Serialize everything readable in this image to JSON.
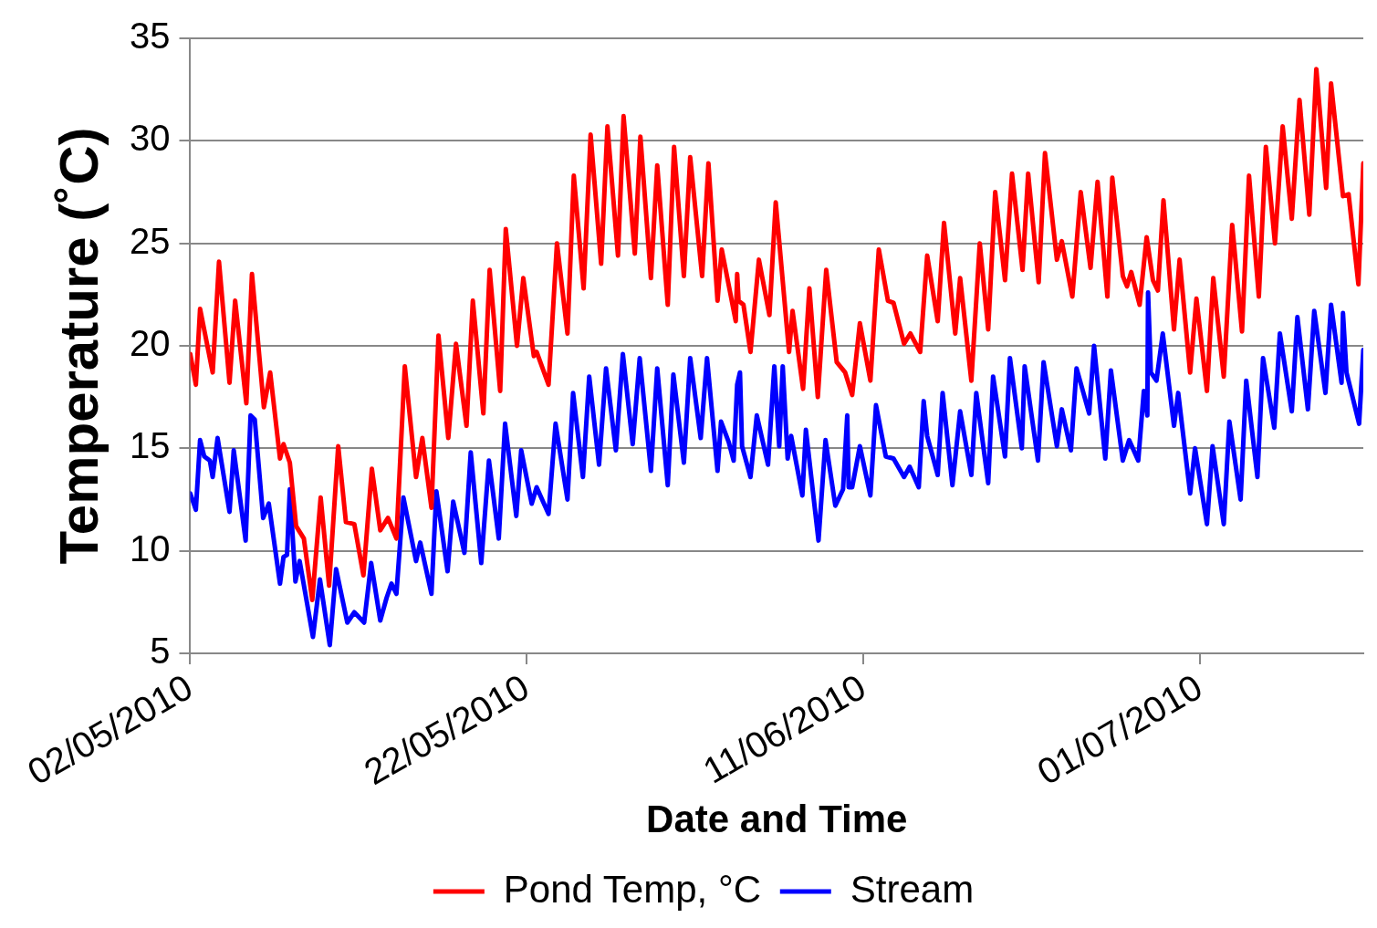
{
  "chart_data": {
    "type": "line",
    "xlabel": "Date and Time",
    "ylabel": "Temperature (˚C)",
    "xlim": [
      "2010-05-02T00:00",
      "2010-07-10T17:00"
    ],
    "xticks": [
      {
        "value": "2010-05-02",
        "label": "02/05/2010"
      },
      {
        "value": "2010-05-22",
        "label": "22/05/2010"
      },
      {
        "value": "2010-06-11",
        "label": "11/06/2010"
      },
      {
        "value": "2010-07-01",
        "label": "01/07/2010"
      }
    ],
    "ylim": [
      5,
      35
    ],
    "yticks": [
      5,
      10,
      15,
      20,
      25,
      30,
      35
    ],
    "grid": "y",
    "legend": "bottom",
    "marker": "none",
    "line_style": "solid",
    "series": [
      {
        "name": "Pond Temp, °C",
        "color": "#ff0000",
        "x": [
          "2010-05-02T00:00",
          "2010-05-02T08:00",
          "2010-05-02T14:00",
          "2010-05-03T08:00",
          "2010-05-03T17:00",
          "2010-05-04T08:00",
          "2010-05-04T16:00",
          "2010-05-05T08:00",
          "2010-05-05T16:00",
          "2010-05-06T09:00",
          "2010-05-06T18:00",
          "2010-05-07T08:00",
          "2010-05-07T13:00",
          "2010-05-07T22:00",
          "2010-05-08T07:00",
          "2010-05-08T18:00",
          "2010-05-09T06:00",
          "2010-05-09T18:00",
          "2010-05-10T06:00",
          "2010-05-10T19:00",
          "2010-05-11T06:00",
          "2010-05-11T18:00",
          "2010-05-12T07:00",
          "2010-05-12T19:00",
          "2010-05-13T07:00",
          "2010-05-13T18:00",
          "2010-05-14T06:00",
          "2010-05-14T18:00",
          "2010-05-15T10:00",
          "2010-05-15T19:00",
          "2010-05-16T08:00",
          "2010-05-16T18:00",
          "2010-05-17T08:00",
          "2010-05-17T19:00",
          "2010-05-18T10:00",
          "2010-05-18T19:00",
          "2010-05-19T10:00",
          "2010-05-19T19:00",
          "2010-05-20T10:00",
          "2010-05-20T18:00",
          "2010-05-21T10:00",
          "2010-05-21T19:00",
          "2010-05-22T10:00",
          "2010-05-22T14:00",
          "2010-05-23T07:00",
          "2010-05-23T19:00",
          "2010-05-24T10:00",
          "2010-05-24T19:00",
          "2010-05-25T09:00",
          "2010-05-25T19:00",
          "2010-05-26T10:00",
          "2010-05-26T19:00",
          "2010-05-27T10:00",
          "2010-05-27T18:00",
          "2010-05-28T10:00",
          "2010-05-28T18:00",
          "2010-05-29T09:00",
          "2010-05-29T18:00",
          "2010-05-30T09:00",
          "2010-05-30T18:00",
          "2010-05-31T08:00",
          "2010-05-31T17:00",
          "2010-06-01T10:00",
          "2010-06-01T19:00",
          "2010-06-02T08:00",
          "2010-06-02T14:00",
          "2010-06-03T10:00",
          "2010-06-03T12:00",
          "2010-06-03T14:00",
          "2010-06-03T21:00",
          "2010-06-04T07:00",
          "2010-06-04T19:00",
          "2010-06-05T10:00",
          "2010-06-05T19:00",
          "2010-06-06T14:00",
          "2010-06-06T19:00",
          "2010-06-07T10:00",
          "2010-06-07T19:00",
          "2010-06-08T07:00",
          "2010-06-08T19:00",
          "2010-06-09T10:00",
          "2010-06-09T22:00",
          "2010-06-10T08:00",
          "2010-06-10T19:00",
          "2010-06-11T10:00",
          "2010-06-11T22:00",
          "2010-06-12T11:00",
          "2010-06-12T19:00",
          "2010-06-13T10:00",
          "2010-06-13T19:00",
          "2010-06-14T09:00",
          "2010-06-14T19:00",
          "2010-06-15T10:00",
          "2010-06-15T19:00",
          "2010-06-16T11:00",
          "2010-06-16T18:00",
          "2010-06-17T10:00",
          "2010-06-17T22:00",
          "2010-06-18T10:00",
          "2010-06-18T20:00",
          "2010-06-19T10:00",
          "2010-06-19T20:00",
          "2010-06-20T11:00",
          "2010-06-20T19:00",
          "2010-06-21T10:00",
          "2010-06-21T19:00",
          "2010-06-22T12:00",
          "2010-06-22T19:00",
          "2010-06-23T10:00",
          "2010-06-23T22:00",
          "2010-06-24T12:00",
          "2010-06-24T22:00",
          "2010-06-25T12:00",
          "2010-06-25T19:00",
          "2010-06-26T10:00",
          "2010-06-26T16:00",
          "2010-06-26T22:00",
          "2010-06-27T10:00",
          "2010-06-27T20:00",
          "2010-06-28T05:00",
          "2010-06-28T12:00",
          "2010-06-28T20:00",
          "2010-06-29T11:00",
          "2010-06-29T19:00",
          "2010-06-30T10:00",
          "2010-06-30T19:00",
          "2010-07-01T10:00",
          "2010-07-01T19:00",
          "2010-07-02T10:00",
          "2010-07-02T22:00",
          "2010-07-03T12:00",
          "2010-07-03T22:00",
          "2010-07-04T12:00",
          "2010-07-04T22:00",
          "2010-07-05T11:00",
          "2010-07-05T22:00",
          "2010-07-06T11:00",
          "2010-07-06T22:00",
          "2010-07-07T12:00",
          "2010-07-07T22:00",
          "2010-07-08T12:00",
          "2010-07-08T19:00",
          "2010-07-09T12:00",
          "2010-07-09T20:00",
          "2010-07-10T10:00",
          "2010-07-10T17:00"
        ],
        "values": [
          19.6,
          18.1,
          21.8,
          18.7,
          24.1,
          18.2,
          22.2,
          17.2,
          23.5,
          17.0,
          18.7,
          14.5,
          15.2,
          14.3,
          11.2,
          10.6,
          7.6,
          12.6,
          8.3,
          15.1,
          11.4,
          11.3,
          8.8,
          14.0,
          11.0,
          11.6,
          10.6,
          19.0,
          13.6,
          15.5,
          12.1,
          20.5,
          15.5,
          20.1,
          16.1,
          22.2,
          16.7,
          23.7,
          17.8,
          25.7,
          20.0,
          23.3,
          19.5,
          19.7,
          18.1,
          25.0,
          20.6,
          28.3,
          22.8,
          30.3,
          24.0,
          30.7,
          24.4,
          31.2,
          24.5,
          30.2,
          23.3,
          28.8,
          22.0,
          29.7,
          23.4,
          29.2,
          23.4,
          28.9,
          22.2,
          24.7,
          21.2,
          23.5,
          22.2,
          22.0,
          19.7,
          24.2,
          21.5,
          27.0,
          19.7,
          21.7,
          17.9,
          22.8,
          17.5,
          23.7,
          19.2,
          18.7,
          17.6,
          21.1,
          18.3,
          24.7,
          22.2,
          22.1,
          20.1,
          20.6,
          19.7,
          24.4,
          21.2,
          26.0,
          20.6,
          23.3,
          18.3,
          25.0,
          20.8,
          27.5,
          23.2,
          28.4,
          23.7,
          28.4,
          23.1,
          29.4,
          24.2,
          25.1,
          22.4,
          27.5,
          23.8,
          28.0,
          22.4,
          28.2,
          23.4,
          22.9,
          23.6,
          22.0,
          25.3,
          23.2,
          22.7,
          27.1,
          20.8,
          24.2,
          18.7,
          22.3,
          17.8,
          23.3,
          18.5,
          25.9,
          20.7,
          28.3,
          22.4,
          29.7,
          25.0,
          30.7,
          26.2,
          32.0,
          26.4,
          33.5,
          27.7,
          32.8,
          27.3,
          27.4,
          23.0,
          28.9
        ]
      },
      {
        "name": "Stream",
        "color": "#0000ff",
        "x": [
          "2010-05-02T00:00",
          "2010-05-02T08:00",
          "2010-05-02T14:00",
          "2010-05-02T20:00",
          "2010-05-03T04:00",
          "2010-05-03T08:00",
          "2010-05-03T15:00",
          "2010-05-04T08:00",
          "2010-05-04T14:00",
          "2010-05-05T07:00",
          "2010-05-05T14:00",
          "2010-05-05T20:00",
          "2010-05-06T08:00",
          "2010-05-06T16:00",
          "2010-05-07T08:00",
          "2010-05-07T13:00",
          "2010-05-07T18:00",
          "2010-05-07T22:00",
          "2010-05-08T06:00",
          "2010-05-08T12:00",
          "2010-05-09T07:00",
          "2010-05-09T17:00",
          "2010-05-10T07:00",
          "2010-05-10T16:00",
          "2010-05-11T08:00",
          "2010-05-11T18:00",
          "2010-05-12T08:00",
          "2010-05-12T18:00",
          "2010-05-13T07:00",
          "2010-05-13T16:00",
          "2010-05-13T23:00",
          "2010-05-14T06:00",
          "2010-05-14T16:00",
          "2010-05-15T10:00",
          "2010-05-15T16:00",
          "2010-05-16T08:00",
          "2010-05-16T15:00",
          "2010-05-17T07:00",
          "2010-05-17T15:00",
          "2010-05-18T07:00",
          "2010-05-18T16:00",
          "2010-05-19T07:00",
          "2010-05-19T18:00",
          "2010-05-20T08:00",
          "2010-05-20T17:00",
          "2010-05-21T09:00",
          "2010-05-21T16:00",
          "2010-05-22T07:00",
          "2010-05-22T14:00",
          "2010-05-23T07:00",
          "2010-05-23T17:00",
          "2010-05-24T10:00",
          "2010-05-24T18:00",
          "2010-05-25T08:00",
          "2010-05-25T17:00",
          "2010-05-26T07:00",
          "2010-05-26T17:00",
          "2010-05-27T07:00",
          "2010-05-27T17:00",
          "2010-05-28T07:00",
          "2010-05-28T17:00",
          "2010-05-29T09:00",
          "2010-05-29T18:00",
          "2010-05-30T09:00",
          "2010-05-30T17:00",
          "2010-05-31T08:00",
          "2010-05-31T17:00",
          "2010-06-01T08:00",
          "2010-06-01T17:00",
          "2010-06-02T08:00",
          "2010-06-02T13:00",
          "2010-06-03T00:00",
          "2010-06-03T07:00",
          "2010-06-03T12:00",
          "2010-06-03T16:00",
          "2010-06-03T19:00",
          "2010-06-04T07:00",
          "2010-06-04T16:00",
          "2010-06-05T08:00",
          "2010-06-05T17:00",
          "2010-06-06T00:00",
          "2010-06-06T05:00",
          "2010-06-06T12:00",
          "2010-06-06T17:00",
          "2010-06-07T09:00",
          "2010-06-07T14:00",
          "2010-06-08T08:00",
          "2010-06-08T18:00",
          "2010-06-09T08:00",
          "2010-06-09T19:00",
          "2010-06-10T01:00",
          "2010-06-10T03:00",
          "2010-06-10T08:00",
          "2010-06-10T19:00",
          "2010-06-11T10:00",
          "2010-06-11T18:00",
          "2010-06-12T08:00",
          "2010-06-12T19:00",
          "2010-06-13T10:00",
          "2010-06-13T18:00",
          "2010-06-14T07:00",
          "2010-06-14T14:00",
          "2010-06-14T19:00",
          "2010-06-15T10:00",
          "2010-06-15T17:00",
          "2010-06-16T07:00",
          "2010-06-16T18:00",
          "2010-06-17T10:00",
          "2010-06-17T17:00",
          "2010-06-18T10:00",
          "2010-06-18T17:00",
          "2010-06-19T10:00",
          "2010-06-19T17:00",
          "2010-06-20T10:00",
          "2010-06-20T14:00",
          "2010-06-21T09:00",
          "2010-06-21T17:00",
          "2010-06-22T12:00",
          "2010-06-22T19:00",
          "2010-06-23T08:00",
          "2010-06-23T16:00",
          "2010-06-24T10:00",
          "2010-06-24T17:00",
          "2010-06-25T09:00",
          "2010-06-25T17:00",
          "2010-06-26T10:00",
          "2010-06-26T19:00",
          "2010-06-27T08:00",
          "2010-06-27T16:00",
          "2010-06-27T21:00",
          "2010-06-27T22:00",
          "2010-06-28T02:00",
          "2010-06-28T10:00",
          "2010-06-28T19:00",
          "2010-06-29T11:00",
          "2010-06-29T17:00",
          "2010-06-30T10:00",
          "2010-06-30T17:00",
          "2010-07-01T10:00",
          "2010-07-01T18:00",
          "2010-07-02T10:00",
          "2010-07-02T18:00",
          "2010-07-03T10:00",
          "2010-07-03T18:00",
          "2010-07-04T10:00",
          "2010-07-04T18:00",
          "2010-07-05T10:00",
          "2010-07-05T18:00",
          "2010-07-06T11:00",
          "2010-07-06T19:00",
          "2010-07-07T10:00",
          "2010-07-07T19:00",
          "2010-07-08T11:00",
          "2010-07-08T19:00",
          "2010-07-09T10:00",
          "2010-07-09T12:00",
          "2010-07-09T17:00",
          "2010-07-10T11:00",
          "2010-07-10T17:00"
        ],
        "values": [
          12.8,
          12.0,
          15.4,
          14.6,
          14.4,
          13.6,
          15.5,
          11.9,
          14.9,
          10.5,
          16.6,
          16.4,
          11.6,
          12.3,
          8.4,
          9.7,
          9.8,
          13.0,
          8.5,
          9.5,
          5.8,
          8.6,
          5.4,
          9.1,
          6.5,
          7.0,
          6.5,
          9.4,
          6.6,
          7.7,
          8.4,
          7.9,
          12.6,
          9.5,
          10.4,
          7.9,
          12.9,
          9.0,
          12.4,
          9.9,
          14.8,
          9.4,
          14.4,
          10.6,
          16.2,
          11.7,
          14.9,
          12.3,
          13.1,
          11.8,
          16.2,
          12.5,
          17.7,
          13.6,
          18.5,
          14.2,
          18.9,
          14.9,
          19.6,
          15.2,
          19.4,
          13.9,
          18.9,
          13.2,
          18.6,
          14.3,
          19.4,
          15.5,
          19.4,
          13.9,
          16.3,
          15.3,
          14.4,
          18.1,
          18.7,
          15.1,
          13.6,
          16.6,
          14.2,
          19.0,
          15.1,
          19.0,
          14.5,
          15.6,
          12.7,
          15.9,
          10.5,
          15.4,
          12.2,
          13.0,
          16.6,
          13.1,
          13.1,
          15.1,
          12.7,
          17.1,
          14.6,
          14.5,
          13.6,
          14.1,
          13.1,
          17.3,
          15.6,
          13.7,
          17.7,
          13.2,
          16.8,
          13.7,
          17.7,
          13.3,
          18.5,
          14.6,
          19.4,
          15.0,
          19.0,
          14.4,
          19.2,
          15.1,
          16.9,
          14.9,
          18.9,
          16.7,
          20.0,
          14.5,
          18.8,
          14.4,
          15.4,
          14.4,
          17.8,
          16.6,
          22.6,
          18.7,
          18.3,
          20.6,
          16.1,
          17.7,
          12.8,
          15.0,
          11.3,
          15.1,
          11.3,
          16.3,
          12.5,
          18.3,
          13.6,
          19.4,
          16.0,
          20.6,
          16.8,
          21.4,
          16.9,
          21.7,
          17.7,
          22.0,
          18.2,
          21.6,
          18.7,
          16.2,
          19.8
        ]
      }
    ]
  }
}
